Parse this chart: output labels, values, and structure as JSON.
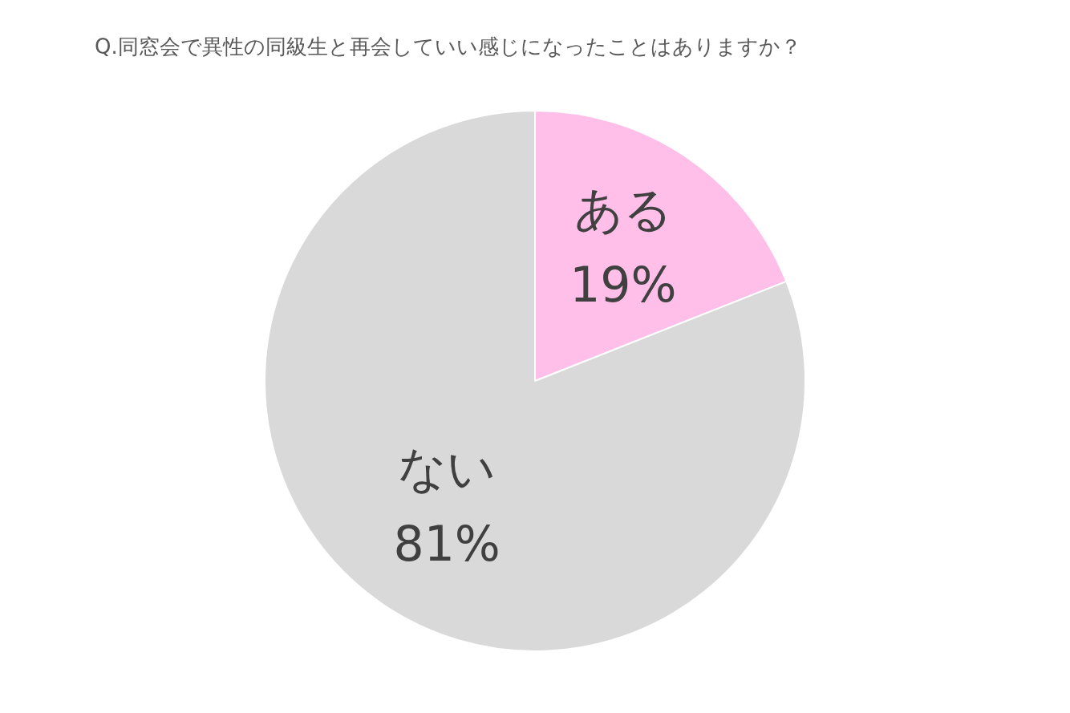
{
  "chart_data": {
    "type": "pie",
    "title": "Q.同窓会で異性の同級生と再会していい感じになったことはありますか？",
    "categories": [
      "ある",
      "ない"
    ],
    "values": [
      19,
      81
    ],
    "colors": [
      "#ffbfe9",
      "#d9d9d9"
    ],
    "value_labels": [
      "19%",
      "81%"
    ],
    "legend": false
  }
}
